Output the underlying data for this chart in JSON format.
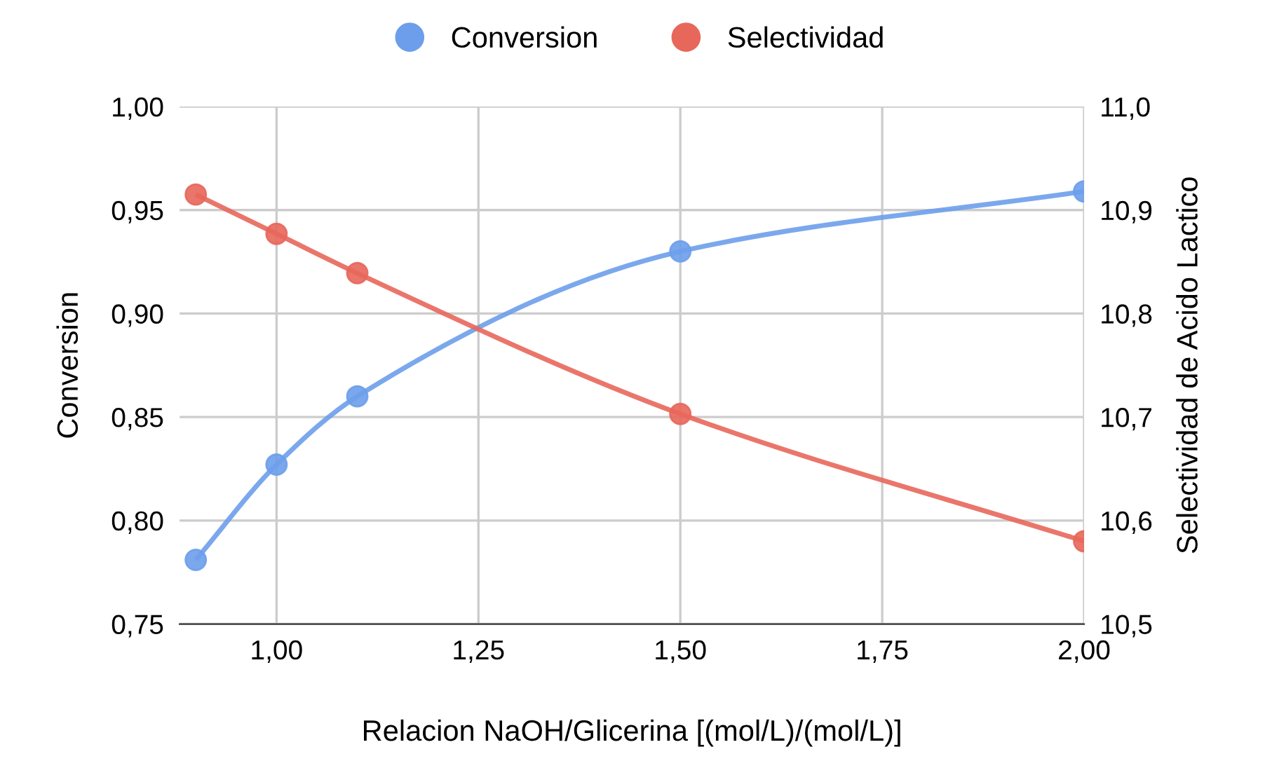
{
  "chart_data": {
    "type": "line",
    "xlabel": "Relacion NaOH/Glicerina [(mol/L)/(mol/L)]",
    "ylabel": "Conversion",
    "y2label": "Selectividad de Acido Lactico",
    "x": [
      0.9,
      1.0,
      1.1,
      1.5,
      2.0
    ],
    "series": [
      {
        "name": "Conversion",
        "color": "#6d9eeb",
        "values": [
          0.781,
          0.827,
          0.86,
          0.93,
          0.959
        ]
      },
      {
        "name": "Selectividad",
        "color": "#e8675b",
        "axis": "y2",
        "values": [
          10.915,
          10.877,
          10.839,
          10.703,
          10.58
        ]
      }
    ],
    "xlim": [
      0.88,
      2.0
    ],
    "xticks": [
      {
        "value": 1.0,
        "label": "1,00"
      },
      {
        "value": 1.25,
        "label": "1,25"
      },
      {
        "value": 1.5,
        "label": "1,50"
      },
      {
        "value": 1.75,
        "label": "1,75"
      },
      {
        "value": 2.0,
        "label": "2,00"
      }
    ],
    "ylim": [
      0.75,
      1.0
    ],
    "yticks": [
      {
        "value": 0.75,
        "label": "0,75"
      },
      {
        "value": 0.8,
        "label": "0,80"
      },
      {
        "value": 0.85,
        "label": "0,85"
      },
      {
        "value": 0.9,
        "label": "0,90"
      },
      {
        "value": 0.95,
        "label": "0,95"
      },
      {
        "value": 1.0,
        "label": "1,00"
      }
    ],
    "y2lim": [
      10.5,
      11.0
    ],
    "y2ticks": [
      {
        "value": 10.5,
        "label": "10,5"
      },
      {
        "value": 10.6,
        "label": "10,6"
      },
      {
        "value": 10.7,
        "label": "10,7"
      },
      {
        "value": 10.8,
        "label": "10,8"
      },
      {
        "value": 10.9,
        "label": "10,9"
      },
      {
        "value": 11.0,
        "label": "11,0"
      }
    ],
    "grid": true,
    "legend": "top",
    "marker": "circle",
    "line_style": "solid"
  }
}
